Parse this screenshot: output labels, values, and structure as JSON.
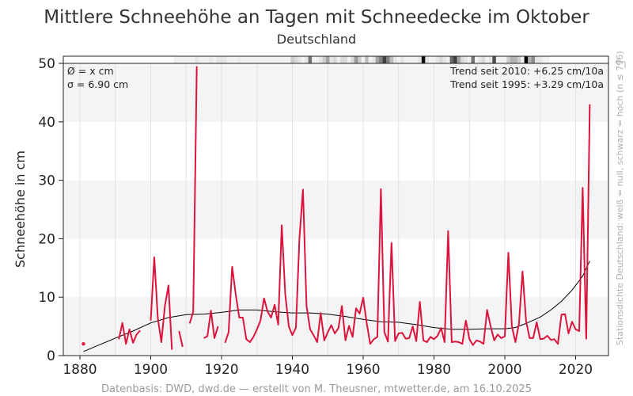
{
  "chart_data": {
    "type": "line",
    "title": "Mittlere Schneehöhe an Tagen mit Schneedecke im Oktober",
    "subtitle": "Deutschland",
    "xlabel": "",
    "ylabel": "Schneehöhe in cm",
    "xlim": [
      1876,
      2030
    ],
    "ylim": [
      0,
      50
    ],
    "x_ticks": [
      1880,
      1900,
      1920,
      1940,
      1960,
      1980,
      2000,
      2020
    ],
    "y_ticks": [
      0,
      10,
      20,
      30,
      40,
      50
    ],
    "grid": true,
    "annotations": {
      "mean": "Ø = x cm",
      "sigma": "σ = 6.90 cm",
      "trend_2010": "Trend seit 2010: +6.25 cm/10a",
      "trend_1995": "Trend seit 1995: +3.29 cm/10a"
    },
    "side_label": "Stationsdichte Deutschland: weiß = null, schwarz = hoch (n ≤ 796)",
    "source": "Datenbasis: DWD, dwd.de — erstellt von M. Theusner, mtwetter.de, am 16.10.2025",
    "series": [
      {
        "name": "Schneehöhe",
        "color": "#dc143c",
        "start_year": 1881,
        "values": [
          2.0,
          null,
          null,
          null,
          null,
          null,
          null,
          null,
          null,
          null,
          2.8,
          5.6,
          2.0,
          4.5,
          2.2,
          3.6,
          4.3,
          null,
          null,
          6.0,
          16.8,
          6.5,
          2.3,
          8.5,
          12.0,
          1.0,
          null,
          4.2,
          1.5,
          null,
          5.5,
          7.5,
          49.5,
          null,
          3.0,
          3.3,
          7.7,
          3.0,
          5.0,
          null,
          2.2,
          4.0,
          15.2,
          10.5,
          6.5,
          6.5,
          2.8,
          2.3,
          3.2,
          4.5,
          6.0,
          9.8,
          7.5,
          6.5,
          8.7,
          5.3,
          22.3,
          10.5,
          5.0,
          3.5,
          4.8,
          20.0,
          28.4,
          8.5,
          4.5,
          3.5,
          2.3,
          7.3,
          2.6,
          4.0,
          5.2,
          3.8,
          4.7,
          8.5,
          2.6,
          5.1,
          3.2,
          8.1,
          7.2,
          9.9,
          5.5,
          2.0,
          2.8,
          3.2,
          28.5,
          4.0,
          2.4,
          19.3,
          2.5,
          3.8,
          3.9,
          2.9,
          3.0,
          5.0,
          2.5,
          9.2,
          2.6,
          2.3,
          3.2,
          2.8,
          3.4,
          4.7,
          2.3,
          21.3,
          2.3,
          2.4,
          2.3,
          2.0,
          6.0,
          2.8,
          1.8,
          2.6,
          2.4,
          2.0,
          7.8,
          5.0,
          2.6,
          3.6,
          3.0,
          3.3,
          17.6,
          5.0,
          2.3,
          5.5,
          14.4,
          6.0,
          3.0,
          3.0,
          5.7,
          2.8,
          2.9,
          3.4,
          2.7,
          2.8,
          2.0,
          7.0,
          7.1,
          3.8,
          5.8,
          4.5,
          4.2,
          28.7,
          2.9,
          43.0
        ]
      },
      {
        "name": "Trend (geglättet)",
        "color": "#000000",
        "points": [
          [
            1881,
            0.7
          ],
          [
            1890,
            3.0
          ],
          [
            1895,
            4.2
          ],
          [
            1900,
            5.6
          ],
          [
            1905,
            6.5
          ],
          [
            1910,
            7.0
          ],
          [
            1915,
            7.1
          ],
          [
            1920,
            7.4
          ],
          [
            1925,
            7.8
          ],
          [
            1930,
            7.8
          ],
          [
            1935,
            7.5
          ],
          [
            1940,
            7.3
          ],
          [
            1945,
            7.3
          ],
          [
            1950,
            7.1
          ],
          [
            1955,
            6.7
          ],
          [
            1960,
            6.2
          ],
          [
            1965,
            5.8
          ],
          [
            1970,
            5.7
          ],
          [
            1975,
            5.3
          ],
          [
            1980,
            4.8
          ],
          [
            1985,
            4.5
          ],
          [
            1990,
            4.5
          ],
          [
            1995,
            4.6
          ],
          [
            2000,
            4.6
          ],
          [
            2003,
            4.8
          ],
          [
            2006,
            5.5
          ],
          [
            2010,
            6.6
          ],
          [
            2013,
            7.8
          ],
          [
            2016,
            9.3
          ],
          [
            2019,
            11.2
          ],
          [
            2022,
            13.6
          ],
          [
            2024,
            16.2
          ]
        ]
      }
    ],
    "station_density": {
      "start_year": 1907,
      "levels": [
        0.05,
        0.05,
        0.05,
        0.05,
        0.05,
        0.05,
        0.1,
        0.05,
        0.05,
        0.05,
        0.08,
        0.05,
        0.1,
        0.1,
        0.1,
        0.05,
        0.05,
        0.05,
        0.08,
        0.05,
        0.05,
        0.05,
        0.05,
        0.05,
        0.05,
        0.05,
        0.05,
        0.05,
        0.05,
        0.05,
        0.05,
        0.05,
        0.05,
        0.2,
        0.15,
        0.1,
        0.05,
        0.1,
        0.55,
        0.05,
        0.05,
        0.1,
        0.2,
        0.35,
        0.1,
        0.15,
        0.05,
        0.15,
        0.15,
        0.05,
        0.15,
        0.4,
        0.2,
        0.05,
        0.25,
        0.05,
        0.1,
        0.35,
        0.5,
        0.75,
        0.5,
        0.25,
        0.1,
        0.05,
        0.1,
        0.05,
        0.05,
        0.05,
        0.05,
        0.1,
        0.95,
        0.1,
        0.05,
        0.05,
        0.1,
        0.15,
        0.1,
        0.05,
        0.6,
        0.75,
        0.35,
        0.15,
        0.1,
        0.05,
        0.55,
        0.05,
        0.1,
        0.15,
        0.05,
        0.1,
        0.7,
        0.05,
        0.05,
        0.05,
        0.2,
        0.3,
        0.3,
        0.2,
        0.05,
        1.0,
        0.3,
        0.45,
        0.1,
        0.1,
        0.05,
        0.05
      ]
    }
  }
}
